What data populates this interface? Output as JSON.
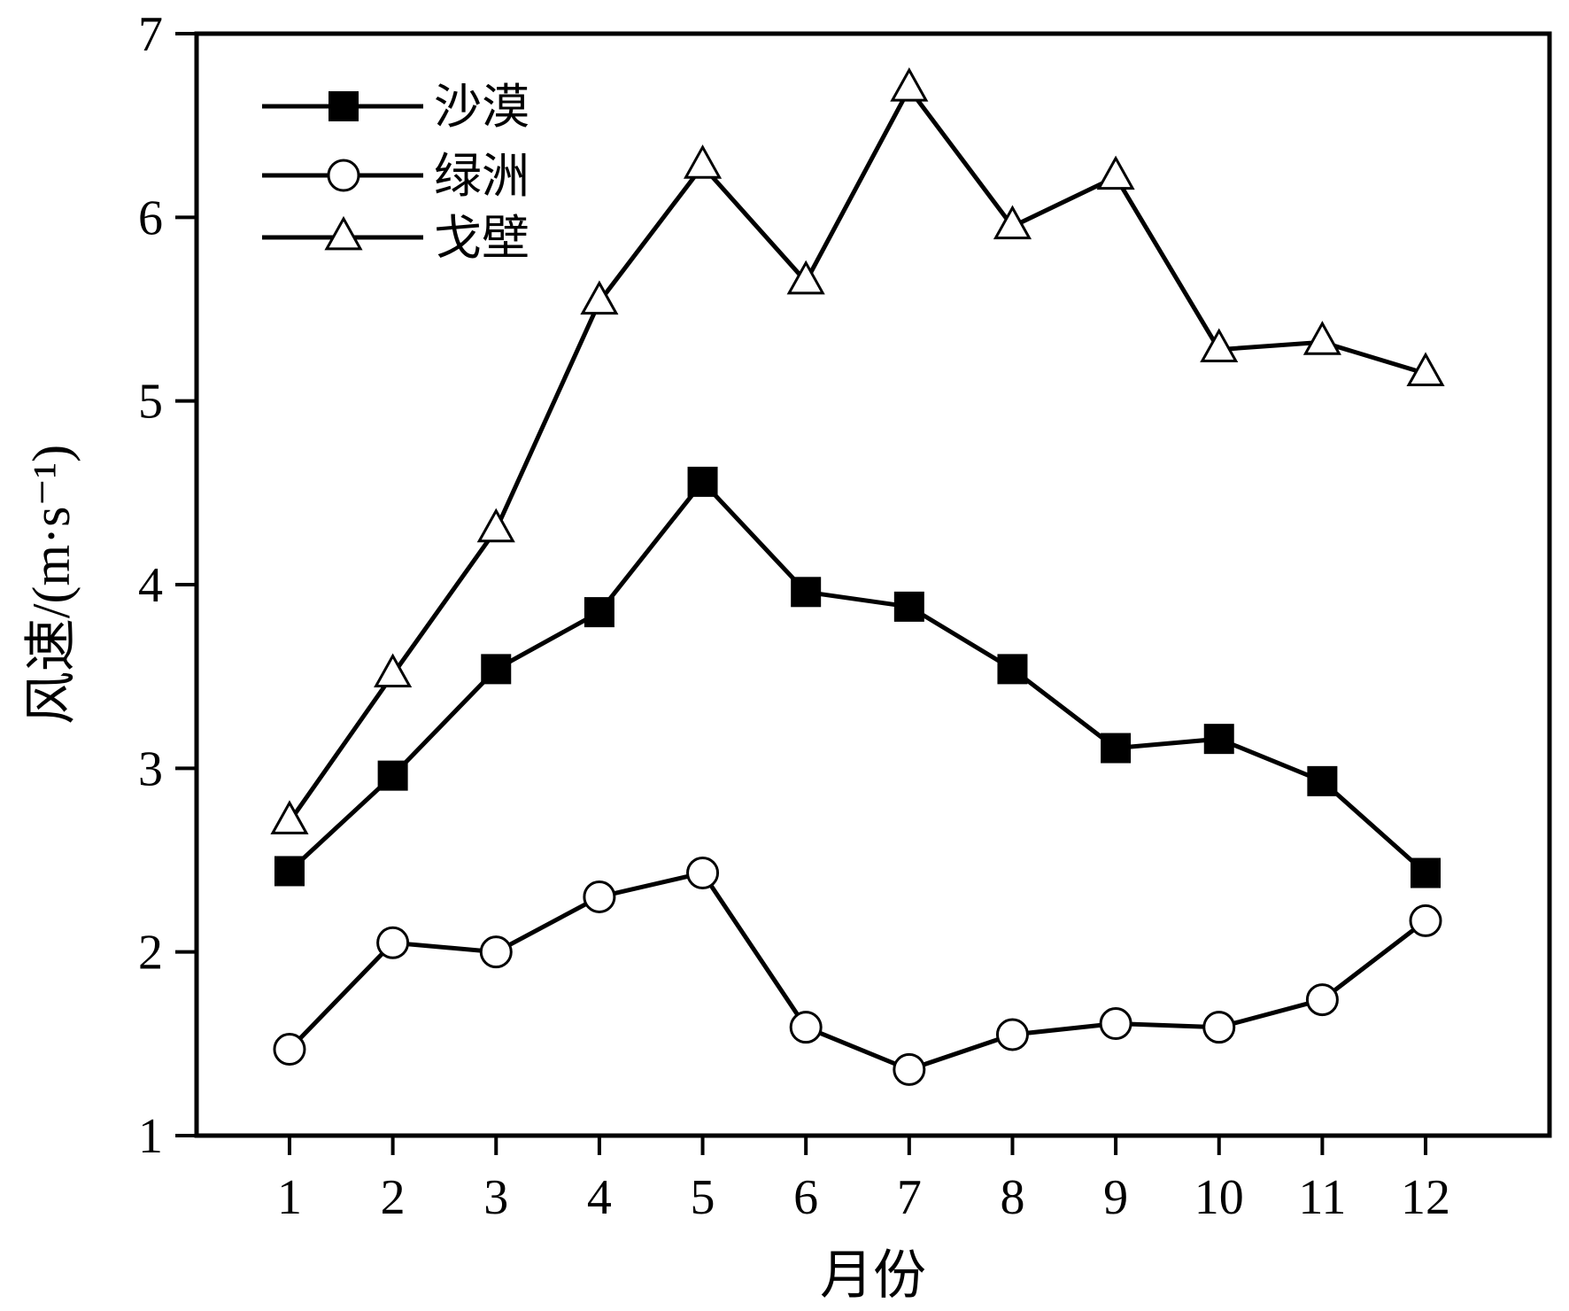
{
  "chart_data": {
    "type": "line",
    "title": "",
    "xlabel": "月份",
    "ylabel": "风速/(m·s⁻¹)",
    "x": [
      1,
      2,
      3,
      4,
      5,
      6,
      7,
      8,
      9,
      10,
      11,
      12
    ],
    "x_tick_labels": [
      "1",
      "2",
      "3",
      "4",
      "5",
      "6",
      "7",
      "8",
      "9",
      "10",
      "11",
      "12"
    ],
    "xlim": [
      0.1,
      13.2
    ],
    "ylim": [
      1,
      7
    ],
    "y_ticks": [
      1,
      2,
      3,
      4,
      5,
      6,
      7
    ],
    "grid": false,
    "legend_position": "top-left",
    "series": [
      {
        "name": "沙漠",
        "marker": "square-filled",
        "color": "#000000",
        "values": [
          2.44,
          2.96,
          3.54,
          3.85,
          4.56,
          3.96,
          3.88,
          3.54,
          3.11,
          3.16,
          2.93,
          2.43
        ]
      },
      {
        "name": "绿洲",
        "marker": "circle-open",
        "color": "#000000",
        "values": [
          1.47,
          2.05,
          2.0,
          2.3,
          2.43,
          1.59,
          1.36,
          1.55,
          1.61,
          1.59,
          1.74,
          2.17
        ]
      },
      {
        "name": "戈壁",
        "marker": "triangle-open",
        "color": "#000000",
        "values": [
          2.71,
          3.51,
          4.3,
          5.54,
          6.28,
          5.65,
          6.7,
          5.95,
          6.22,
          5.28,
          5.32,
          5.15
        ]
      }
    ]
  }
}
